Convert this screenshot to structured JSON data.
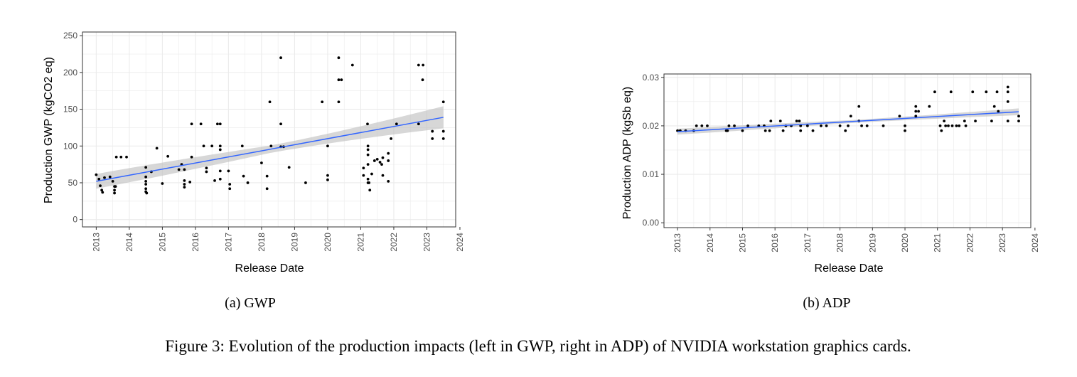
{
  "figure_caption": "Figure 3: Evolution of the production impacts (left in GWP, right in ADP) of NVIDIA workstation graphics cards.",
  "colors": {
    "point": "#000000",
    "trend": "#3366FF",
    "band": "#bdbdbd",
    "grid": "#ebebeb",
    "panel_border": "#333333"
  },
  "chart_data": [
    {
      "type": "scatter",
      "subcaption": "(a) GWP",
      "xlabel": "Release Date",
      "ylabel": "Production GWP (kgCO2 eq)",
      "xlim": [
        "2012-08-01",
        "2023-11-15"
      ],
      "ylim": [
        -10,
        255
      ],
      "x_ticks": [
        "2013",
        "2014",
        "2015",
        "2016",
        "2017",
        "2018",
        "2019",
        "2020",
        "2021",
        "2022",
        "2023",
        "2024"
      ],
      "y_ticks": [
        "0",
        "50",
        "100",
        "150",
        "200",
        "250"
      ],
      "grid": true,
      "trend": {
        "method": "linear fit with confidence band",
        "start": [
          "2013-01-01",
          52
        ],
        "end": [
          "2023-07-01",
          139
        ],
        "band_halfwidth_start": 10,
        "band_halfwidth_mid": 5,
        "band_halfwidth_end": 15
      },
      "points": [
        [
          "2013-01-01",
          61
        ],
        [
          "2013-02-01",
          55
        ],
        [
          "2013-02-15",
          46
        ],
        [
          "2013-03-01",
          40
        ],
        [
          "2013-03-10",
          37
        ],
        [
          "2013-04-01",
          57
        ],
        [
          "2013-06-01",
          58
        ],
        [
          "2013-07-01",
          52
        ],
        [
          "2013-07-20",
          45
        ],
        [
          "2013-07-20",
          40
        ],
        [
          "2013-07-20",
          36
        ],
        [
          "2013-08-01",
          45
        ],
        [
          "2013-08-10",
          85
        ],
        [
          "2013-10-01",
          85
        ],
        [
          "2013-12-01",
          85
        ],
        [
          "2014-07-01",
          71
        ],
        [
          "2014-07-01",
          58
        ],
        [
          "2014-07-01",
          52
        ],
        [
          "2014-07-01",
          48
        ],
        [
          "2014-07-01",
          42
        ],
        [
          "2014-07-01",
          38
        ],
        [
          "2014-07-10",
          36
        ],
        [
          "2014-09-01",
          65
        ],
        [
          "2014-11-01",
          97
        ],
        [
          "2015-01-01",
          49
        ],
        [
          "2015-03-01",
          86
        ],
        [
          "2015-07-01",
          68
        ],
        [
          "2015-08-01",
          75
        ],
        [
          "2015-09-01",
          68
        ],
        [
          "2015-09-01",
          53
        ],
        [
          "2015-09-01",
          48
        ],
        [
          "2015-09-01",
          44
        ],
        [
          "2015-11-01",
          51
        ],
        [
          "2015-11-20",
          85
        ],
        [
          "2015-11-20",
          130
        ],
        [
          "2016-03-01",
          130
        ],
        [
          "2016-04-01",
          100
        ],
        [
          "2016-05-01",
          70
        ],
        [
          "2016-05-01",
          65
        ],
        [
          "2016-07-01",
          100
        ],
        [
          "2016-08-01",
          53
        ],
        [
          "2016-09-01",
          130
        ],
        [
          "2016-10-01",
          130
        ],
        [
          "2016-10-01",
          100
        ],
        [
          "2016-10-01",
          95
        ],
        [
          "2016-10-01",
          66
        ],
        [
          "2016-10-01",
          55
        ],
        [
          "2017-01-01",
          66
        ],
        [
          "2017-01-15",
          48
        ],
        [
          "2017-01-15",
          42
        ],
        [
          "2017-06-01",
          100
        ],
        [
          "2017-06-15",
          59
        ],
        [
          "2017-08-01",
          50
        ],
        [
          "2018-01-01",
          77
        ],
        [
          "2018-03-01",
          59
        ],
        [
          "2018-03-01",
          42
        ],
        [
          "2018-04-01",
          160
        ],
        [
          "2018-04-15",
          100
        ],
        [
          "2018-08-01",
          220
        ],
        [
          "2018-08-01",
          130
        ],
        [
          "2018-08-01",
          99
        ],
        [
          "2018-09-01",
          99
        ],
        [
          "2018-11-01",
          71
        ],
        [
          "2019-05-01",
          50
        ],
        [
          "2019-11-01",
          160
        ],
        [
          "2020-01-01",
          100
        ],
        [
          "2020-01-01",
          60
        ],
        [
          "2020-01-01",
          54
        ],
        [
          "2020-05-01",
          220
        ],
        [
          "2020-05-01",
          190
        ],
        [
          "2020-05-01",
          160
        ],
        [
          "2020-06-01",
          190
        ],
        [
          "2020-10-01",
          210
        ],
        [
          "2021-02-01",
          70
        ],
        [
          "2021-02-01",
          60
        ],
        [
          "2021-03-15",
          130
        ],
        [
          "2021-03-20",
          100
        ],
        [
          "2021-03-20",
          95
        ],
        [
          "2021-03-20",
          88
        ],
        [
          "2021-03-20",
          75
        ],
        [
          "2021-03-20",
          55
        ],
        [
          "2021-03-20",
          50
        ],
        [
          "2021-04-01",
          50
        ],
        [
          "2021-04-10",
          40
        ],
        [
          "2021-05-01",
          62
        ],
        [
          "2021-06-01",
          80
        ],
        [
          "2021-07-01",
          82
        ],
        [
          "2021-08-01",
          78
        ],
        [
          "2021-08-20",
          75
        ],
        [
          "2021-09-01",
          60
        ],
        [
          "2021-09-01",
          84
        ],
        [
          "2021-11-01",
          90
        ],
        [
          "2021-11-01",
          80
        ],
        [
          "2021-11-01",
          52
        ],
        [
          "2021-12-01",
          110
        ],
        [
          "2022-02-01",
          130
        ],
        [
          "2022-10-01",
          130
        ],
        [
          "2022-10-01",
          210
        ],
        [
          "2022-11-15",
          190
        ],
        [
          "2022-11-20",
          210
        ],
        [
          "2023-03-01",
          110
        ],
        [
          "2023-03-01",
          120
        ],
        [
          "2023-07-01",
          160
        ],
        [
          "2023-07-01",
          120
        ],
        [
          "2023-07-01",
          110
        ]
      ]
    },
    {
      "type": "scatter",
      "subcaption": "(b) ADP",
      "xlabel": "Release Date",
      "ylabel": "Production ADP (kgSb eq)",
      "xlim": [
        "2012-08-01",
        "2023-11-15"
      ],
      "ylim": [
        -0.001,
        0.0307
      ],
      "x_ticks": [
        "2013",
        "2014",
        "2015",
        "2016",
        "2017",
        "2018",
        "2019",
        "2020",
        "2021",
        "2022",
        "2023",
        "2024"
      ],
      "y_ticks": [
        "0.00",
        "0.01",
        "0.02",
        "0.03"
      ],
      "grid": true,
      "trend": {
        "method": "linear fit with confidence band",
        "start": [
          "2013-01-01",
          0.0188
        ],
        "end": [
          "2023-07-01",
          0.0229
        ],
        "band_halfwidth_start": 0.0006,
        "band_halfwidth_mid": 0.0003,
        "band_halfwidth_end": 0.0007
      },
      "points": [
        [
          "2013-01-01",
          0.019
        ],
        [
          "2013-02-01",
          0.019
        ],
        [
          "2013-04-01",
          0.019
        ],
        [
          "2013-07-01",
          0.019
        ],
        [
          "2013-08-01",
          0.02
        ],
        [
          "2013-10-01",
          0.02
        ],
        [
          "2013-12-01",
          0.02
        ],
        [
          "2014-07-01",
          0.019
        ],
        [
          "2014-07-15",
          0.019
        ],
        [
          "2014-08-01",
          0.02
        ],
        [
          "2014-10-01",
          0.02
        ],
        [
          "2015-01-01",
          0.019
        ],
        [
          "2015-03-01",
          0.02
        ],
        [
          "2015-07-01",
          0.02
        ],
        [
          "2015-09-01",
          0.02
        ],
        [
          "2015-09-15",
          0.019
        ],
        [
          "2015-11-01",
          0.019
        ],
        [
          "2015-11-15",
          0.021
        ],
        [
          "2016-03-01",
          0.021
        ],
        [
          "2016-04-01",
          0.019
        ],
        [
          "2016-05-01",
          0.02
        ],
        [
          "2016-07-01",
          0.02
        ],
        [
          "2016-09-01",
          0.021
        ],
        [
          "2016-10-01",
          0.021
        ],
        [
          "2016-10-15",
          0.02
        ],
        [
          "2016-10-15",
          0.019
        ],
        [
          "2017-01-01",
          0.02
        ],
        [
          "2017-03-01",
          0.019
        ],
        [
          "2017-06-01",
          0.02
        ],
        [
          "2017-08-01",
          0.02
        ],
        [
          "2018-01-01",
          0.02
        ],
        [
          "2018-03-01",
          0.019
        ],
        [
          "2018-04-01",
          0.02
        ],
        [
          "2018-05-01",
          0.022
        ],
        [
          "2018-08-01",
          0.024
        ],
        [
          "2018-08-01",
          0.021
        ],
        [
          "2018-09-01",
          0.02
        ],
        [
          "2018-11-01",
          0.02
        ],
        [
          "2019-05-01",
          0.02
        ],
        [
          "2019-11-01",
          0.022
        ],
        [
          "2020-01-01",
          0.02
        ],
        [
          "2020-01-01",
          0.019
        ],
        [
          "2020-05-01",
          0.024
        ],
        [
          "2020-05-01",
          0.023
        ],
        [
          "2020-05-01",
          0.022
        ],
        [
          "2020-06-01",
          0.023
        ],
        [
          "2020-10-01",
          0.024
        ],
        [
          "2020-12-01",
          0.027
        ],
        [
          "2021-02-01",
          0.02
        ],
        [
          "2021-02-15",
          0.019
        ],
        [
          "2021-03-15",
          0.021
        ],
        [
          "2021-04-01",
          0.02
        ],
        [
          "2021-05-01",
          0.02
        ],
        [
          "2021-06-01",
          0.027
        ],
        [
          "2021-06-15",
          0.02
        ],
        [
          "2021-08-01",
          0.02
        ],
        [
          "2021-09-01",
          0.02
        ],
        [
          "2021-11-01",
          0.021
        ],
        [
          "2021-11-15",
          0.02
        ],
        [
          "2022-02-01",
          0.027
        ],
        [
          "2022-03-01",
          0.021
        ],
        [
          "2022-07-01",
          0.027
        ],
        [
          "2022-09-01",
          0.021
        ],
        [
          "2022-10-01",
          0.024
        ],
        [
          "2022-11-01",
          0.027
        ],
        [
          "2022-11-15",
          0.023
        ],
        [
          "2023-03-01",
          0.028
        ],
        [
          "2023-03-01",
          0.027
        ],
        [
          "2023-03-01",
          0.025
        ],
        [
          "2023-03-01",
          0.021
        ],
        [
          "2023-07-01",
          0.022
        ],
        [
          "2023-07-01",
          0.021
        ]
      ]
    }
  ]
}
